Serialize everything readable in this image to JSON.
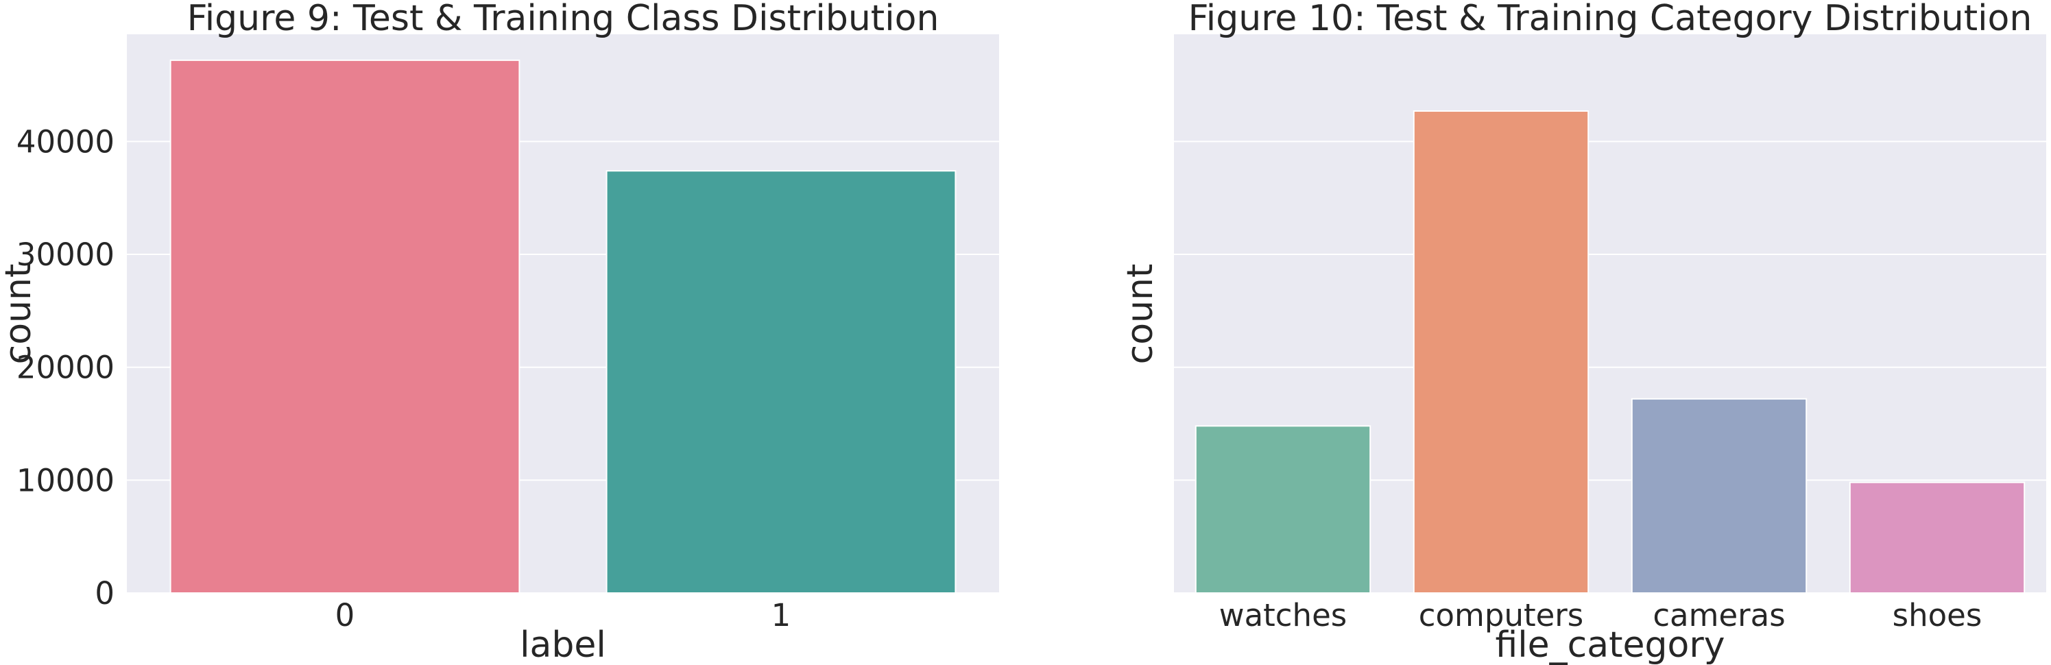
{
  "chart_data": [
    {
      "type": "bar",
      "title": "Figure 9: Test & Training Class Distribution",
      "xlabel": "label",
      "ylabel": "count",
      "categories": [
        "0",
        "1"
      ],
      "values": [
        47200,
        37400
      ],
      "colors": [
        "#E88090",
        "#46A09A"
      ],
      "yticks": [
        0,
        10000,
        20000,
        30000,
        40000
      ],
      "show_ytick_labels": true,
      "ylim": [
        0,
        49500
      ],
      "grid": true,
      "background": "#EAEAF2"
    },
    {
      "type": "bar",
      "title": "Figure 10: Test & Training Category Distribution",
      "xlabel": "file_category",
      "ylabel": "count",
      "categories": [
        "watches",
        "computers",
        "cameras",
        "shoes"
      ],
      "values": [
        14800,
        42700,
        17200,
        9800
      ],
      "colors": [
        "#75B6A2",
        "#E99778",
        "#95A4C3",
        "#DC95C0"
      ],
      "yticks": [
        0,
        10000,
        20000,
        30000,
        40000
      ],
      "show_ytick_labels": false,
      "ylim": [
        0,
        49500
      ],
      "grid": true,
      "background": "#EAEAF2"
    }
  ]
}
